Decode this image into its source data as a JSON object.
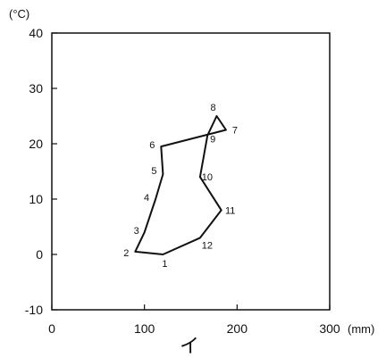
{
  "chart_data": {
    "type": "line",
    "y_unit": "(°C)",
    "x_unit": "(mm)",
    "caption": "イ",
    "xlim": [
      0,
      300
    ],
    "ylim": [
      -10,
      40
    ],
    "x_ticks": [
      0,
      100,
      200,
      300
    ],
    "y_ticks": [
      -10,
      0,
      10,
      20,
      30,
      40
    ],
    "grid": false,
    "points": [
      {
        "label": "1",
        "x": 120,
        "y": 0
      },
      {
        "label": "2",
        "x": 90,
        "y": 0.5
      },
      {
        "label": "3",
        "x": 100,
        "y": 4
      },
      {
        "label": "4",
        "x": 112,
        "y": 10
      },
      {
        "label": "5",
        "x": 120,
        "y": 14.5
      },
      {
        "label": "6",
        "x": 118,
        "y": 19.5
      },
      {
        "label": "7",
        "x": 188,
        "y": 22.5
      },
      {
        "label": "8",
        "x": 178,
        "y": 25
      },
      {
        "label": "9",
        "x": 168,
        "y": 21.5
      },
      {
        "label": "10",
        "x": 160,
        "y": 14
      },
      {
        "label": "11",
        "x": 183,
        "y": 8
      },
      {
        "label": "12",
        "x": 160,
        "y": 3
      }
    ]
  }
}
